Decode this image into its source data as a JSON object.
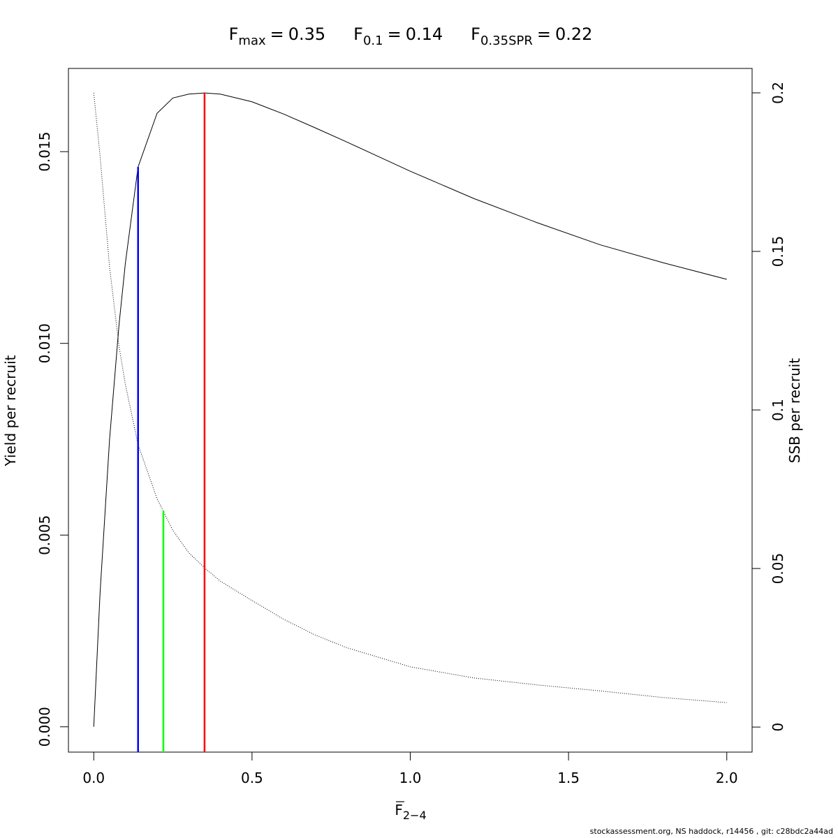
{
  "chart_data": {
    "type": "line",
    "reference_lines": [
      {
        "name": "F",
        "subscript": "max",
        "sign": "=",
        "x": 0.35,
        "y": 0.01653,
        "axis": "y",
        "color": "#ff0000"
      },
      {
        "name": "F",
        "subscript": "0.1",
        "sign": "=",
        "x": 0.14,
        "y": 0.0146,
        "axis": "y",
        "color": "#0000ff"
      },
      {
        "name": "F",
        "subscript": "0.35SPR",
        "sign": "=",
        "x": 0.22,
        "y": 0.0683,
        "axis": "y2",
        "color": "#00ff00"
      }
    ],
    "title_order": [
      0,
      1,
      2
    ],
    "xlabel": {
      "text": "F",
      "subscript": "2−4"
    },
    "ylabel": "Yield per recruit",
    "y2label": "SSB per recruit",
    "footer": "stockassessment.org, NS haddock, r14456 , git: c28bdc2a44ad",
    "x": [
      0,
      0.02,
      0.05,
      0.08,
      0.1,
      0.14,
      0.2,
      0.25,
      0.3,
      0.35,
      0.4,
      0.5,
      0.6,
      0.7,
      0.8,
      0.9,
      1.0,
      1.2,
      1.4,
      1.6,
      1.8,
      2.0
    ],
    "series": [
      {
        "name": "Yield per recruit",
        "color": "#000000",
        "line_style": "solid",
        "axis": "y",
        "values": [
          0,
          0.0035,
          0.0075,
          0.0105,
          0.0121,
          0.0146,
          0.016,
          0.0164,
          0.0165,
          0.01653,
          0.0165,
          0.0163,
          0.01598,
          0.01562,
          0.01525,
          0.01487,
          0.01449,
          0.01378,
          0.01315,
          0.01257,
          0.0121,
          0.01167
        ]
      },
      {
        "name": "SSB per recruit",
        "color": "#000000",
        "line_style": "dotted",
        "axis": "y2",
        "values": [
          0.2,
          0.18,
          0.145,
          0.12,
          0.108,
          0.089,
          0.072,
          0.062,
          0.055,
          0.0502,
          0.046,
          0.0399,
          0.034,
          0.029,
          0.025,
          0.022,
          0.019,
          0.0155,
          0.0133,
          0.0114,
          0.0093,
          0.0077
        ]
      }
    ],
    "xlim": [
      -0.08,
      2.08
    ],
    "ylim": [
      -0.00066,
      0.01717
    ],
    "y2lim": [
      -0.0079,
      0.2077
    ],
    "xticks": [
      {
        "value": 0,
        "label": "0.0"
      },
      {
        "value": 0.5,
        "label": "0.5"
      },
      {
        "value": 1,
        "label": "1.0"
      },
      {
        "value": 1.5,
        "label": "1.5"
      },
      {
        "value": 2,
        "label": "2.0"
      }
    ],
    "yticks": [
      {
        "value": 0,
        "label": "0.000"
      },
      {
        "value": 0.005,
        "label": "0.005"
      },
      {
        "value": 0.01,
        "label": "0.010"
      },
      {
        "value": 0.015,
        "label": "0.015"
      }
    ],
    "y2ticks": [
      0,
      0.05,
      0.1,
      0.15,
      0.2
    ],
    "grid": false
  }
}
